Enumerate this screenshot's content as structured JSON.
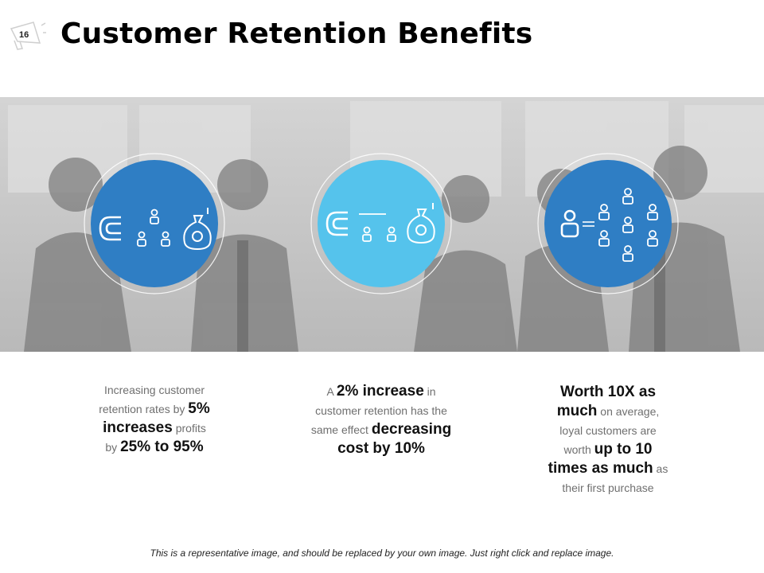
{
  "slide": {
    "number": "16",
    "title": "Customer Retention Benefits",
    "accent_dark": "#2f7ec4",
    "accent_light": "#55c3ec"
  },
  "icons": {
    "card1": [
      "magnet-icon",
      "people-icon",
      "money-bag-icon"
    ],
    "card2": [
      "magnet-icon",
      "people-icon",
      "money-bag-icon"
    ],
    "card3": [
      "user-icon",
      "people-group-icon"
    ]
  },
  "cards": [
    {
      "t1": "Increasing customer",
      "t2": "retention rates by ",
      "b1": "5%",
      "b2": "increases",
      "t3": " profits",
      "t4": "by ",
      "b3": "25% to 95%"
    },
    {
      "t1": "A ",
      "b1": "2% increase",
      "t2": " in",
      "t3": "customer retention has the",
      "t4": "same effect ",
      "b2": "decreasing",
      "b3": "cost by 10%"
    },
    {
      "b1": "Worth 10X as",
      "b2": "much",
      "t1": " on average,",
      "t2": "loyal customers are",
      "t3": "worth ",
      "b3": "up to 10",
      "b4": "times as much",
      "t4": " as",
      "t5": "their first purchase"
    }
  ],
  "footer": "This is a representative image, and should be replaced by your own image. Just right click and replace image."
}
